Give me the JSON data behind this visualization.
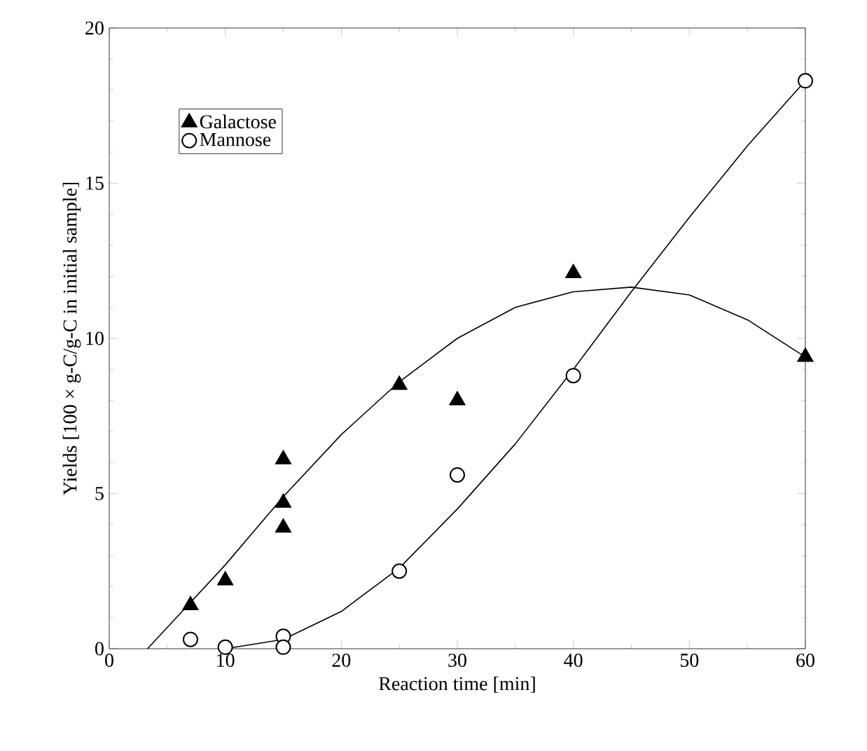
{
  "chart_data": {
    "type": "scatter",
    "xlabel": "Reaction time [min]",
    "ylabel": "Yields [100 × g-C/g-C in initial sample]",
    "xlim": [
      0,
      60
    ],
    "ylim": [
      0,
      20
    ],
    "xticks": [
      0,
      10,
      20,
      30,
      40,
      50,
      60
    ],
    "yticks": [
      0,
      5,
      10,
      15,
      20
    ],
    "grid": false,
    "legend": "top left",
    "series": [
      {
        "name": "Galactose",
        "color": "#000000",
        "marker": "triangle",
        "x": [
          7,
          10,
          15,
          15,
          15,
          25,
          30,
          40,
          60
        ],
        "values": [
          1.4,
          2.2,
          6.1,
          4.7,
          3.9,
          8.5,
          8.0,
          12.1,
          9.4
        ]
      },
      {
        "name": "Mannose",
        "color": "#000000",
        "marker": "circle",
        "x": [
          7,
          10,
          15,
          15,
          25,
          30,
          40,
          60
        ],
        "values": [
          0.3,
          0.05,
          0.4,
          0.05,
          2.5,
          5.6,
          8.8,
          18.3
        ]
      },
      {
        "type": "line",
        "color": "#000000",
        "marker": "none",
        "x": [
          3.3,
          10,
          15,
          20,
          25,
          30,
          35,
          40,
          45,
          50,
          55,
          60
        ],
        "values": [
          0,
          2.7,
          4.9,
          6.9,
          8.6,
          10.0,
          11.0,
          11.5,
          11.65,
          11.4,
          10.6,
          9.4
        ]
      },
      {
        "type": "line",
        "color": "#000000",
        "marker": "none",
        "x": [
          10,
          15,
          20,
          25,
          30,
          35,
          40,
          45,
          50,
          55,
          60
        ],
        "values": [
          0,
          0.3,
          1.2,
          2.6,
          4.5,
          6.6,
          9.0,
          11.5,
          13.9,
          16.2,
          18.3
        ]
      }
    ]
  }
}
